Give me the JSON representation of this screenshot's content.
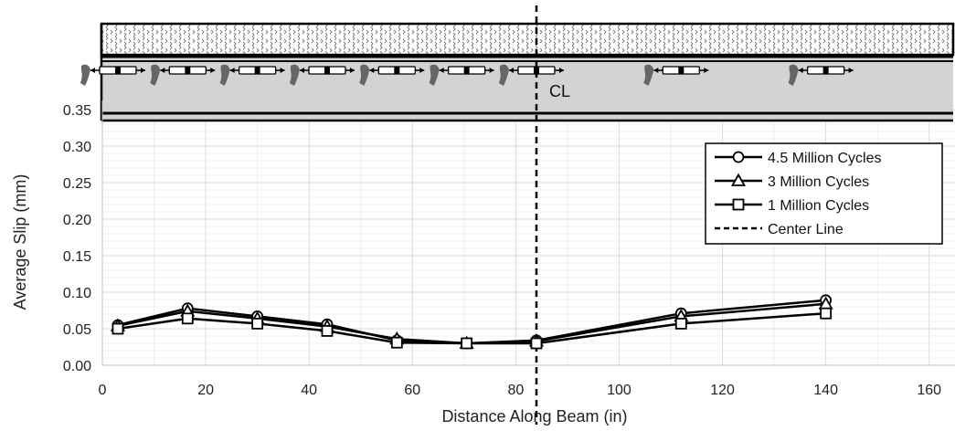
{
  "chart_data": {
    "type": "line",
    "xlabel": "Distance Along Beam (in)",
    "ylabel": "Average Slip (mm)",
    "xlim": [
      0,
      165
    ],
    "ylim": [
      0,
      0.35
    ],
    "x_ticks": [
      "0",
      "20",
      "40",
      "60",
      "80",
      "100",
      "120",
      "140",
      "160"
    ],
    "y_ticks": [
      "0.00",
      "0.05",
      "0.10",
      "0.15",
      "0.20",
      "0.25",
      "0.30",
      "0.35"
    ],
    "grid": true,
    "legend_position": "top-right",
    "center_line": {
      "x": 84,
      "label": "CL",
      "legend": "Center Line"
    },
    "x": [
      3,
      16.5,
      30,
      43.5,
      57,
      70.5,
      84,
      112,
      140
    ],
    "series": [
      {
        "name": "4.5 Million Cycles",
        "marker": "circle",
        "values": [
          0.055,
          0.078,
          0.067,
          0.056,
          0.034,
          0.03,
          0.034,
          0.071,
          0.089
        ]
      },
      {
        "name": "3 Million Cycles",
        "marker": "triangle",
        "values": [
          0.054,
          0.074,
          0.064,
          0.053,
          0.036,
          0.03,
          0.033,
          0.067,
          0.084
        ]
      },
      {
        "name": "1 Million Cycles",
        "marker": "square",
        "values": [
          0.05,
          0.064,
          0.057,
          0.047,
          0.031,
          0.03,
          0.03,
          0.057,
          0.071
        ]
      }
    ],
    "beam_diagram": {
      "studs_x": [
        3,
        16.5,
        30,
        43.5,
        57,
        70.5,
        84,
        112,
        140
      ],
      "colors": {
        "concrete_bg": "#ffffff",
        "steel_web": "#d3d3d3",
        "outline": "#000000",
        "gauge": "#666666"
      }
    }
  }
}
